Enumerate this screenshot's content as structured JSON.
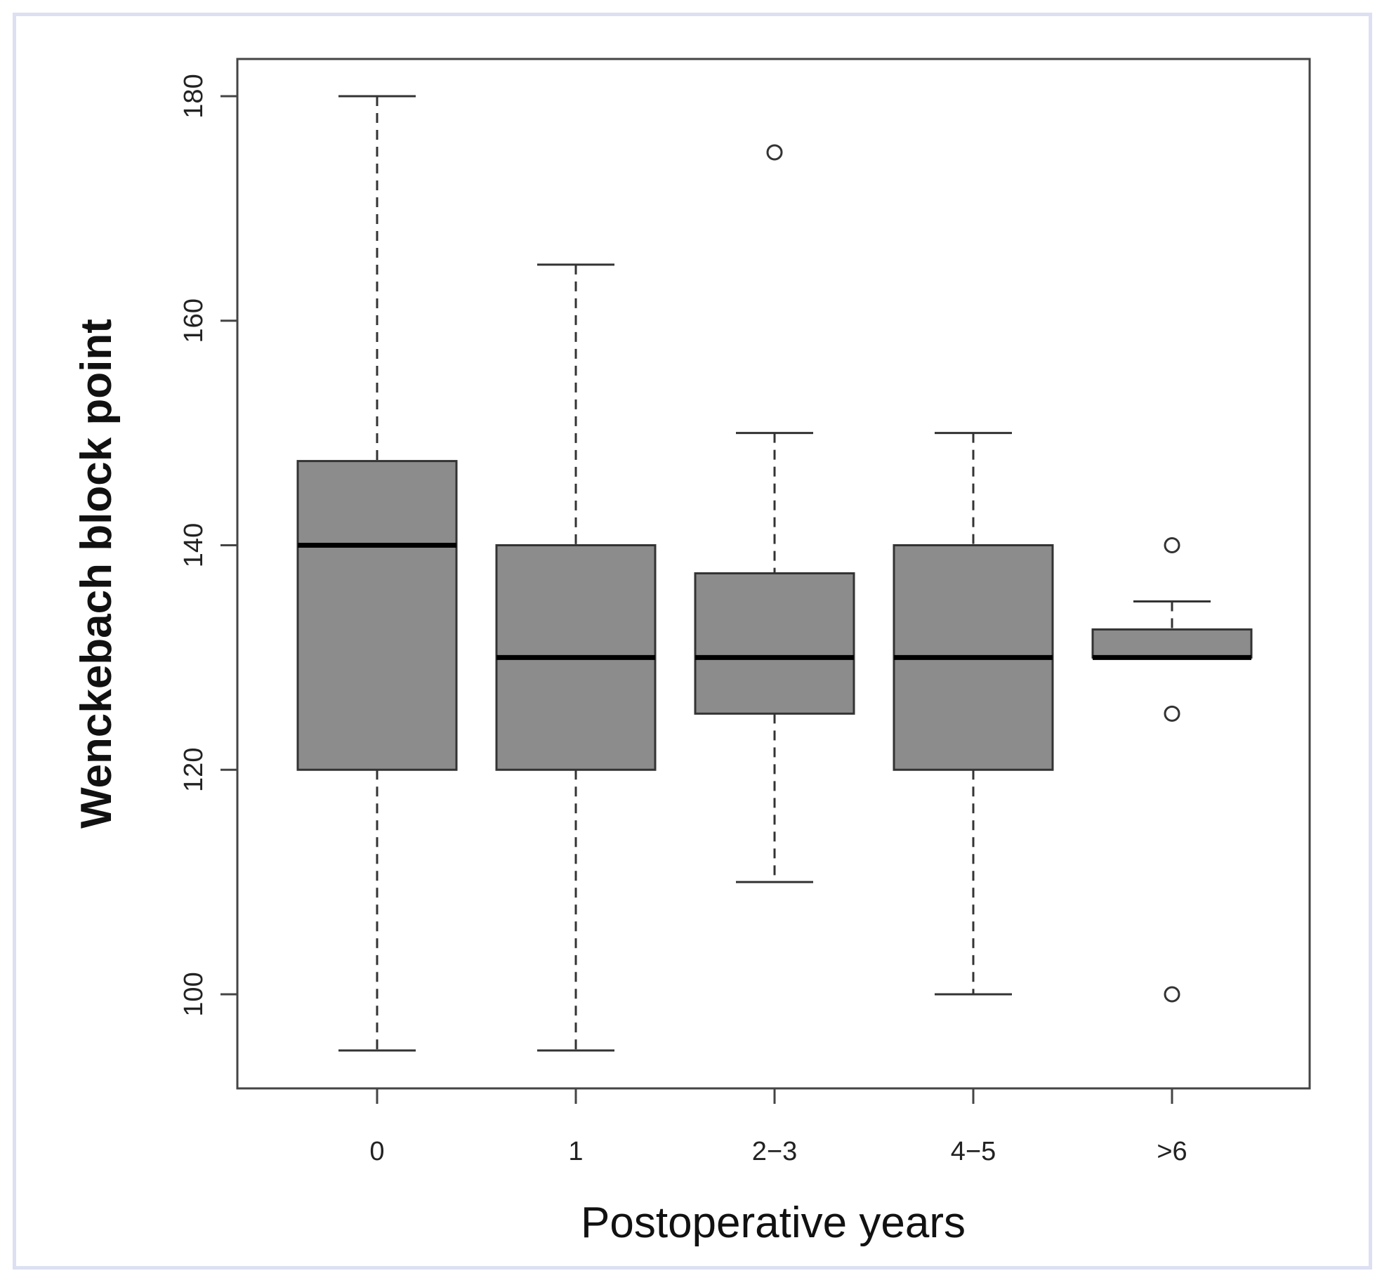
{
  "chart_data": {
    "type": "boxplot",
    "title": "",
    "xlabel": "Postoperative years",
    "ylabel": "Wenckebach block point",
    "categories": [
      "0",
      "1",
      "2−3",
      "4−5",
      ">6"
    ],
    "ylim": [
      90,
      183
    ],
    "yticks": [
      100,
      120,
      140,
      160,
      180
    ],
    "grid": false,
    "boxes": [
      {
        "category": "0",
        "whisker_low": 95,
        "q1": 120,
        "median": 140,
        "q3": 147.5,
        "whisker_high": 180,
        "outliers": []
      },
      {
        "category": "1",
        "whisker_low": 95,
        "q1": 120,
        "median": 130,
        "q3": 140,
        "whisker_high": 165,
        "outliers": []
      },
      {
        "category": "2−3",
        "whisker_low": 110,
        "q1": 125,
        "median": 130,
        "q3": 137.5,
        "whisker_high": 150,
        "outliers": [
          175
        ]
      },
      {
        "category": "4−5",
        "whisker_low": 100,
        "q1": 120,
        "median": 130,
        "q3": 140,
        "whisker_high": 150,
        "outliers": []
      },
      {
        "category": ">6",
        "whisker_low": 130,
        "q1": 130,
        "median": 130,
        "q3": 132.5,
        "whisker_high": 135,
        "outliers": [
          140,
          125,
          100
        ]
      }
    ]
  },
  "colors": {
    "box_fill": "#8c8c8c",
    "line": "#333333",
    "median": "#000000",
    "frame_border": "#dde0f2"
  }
}
